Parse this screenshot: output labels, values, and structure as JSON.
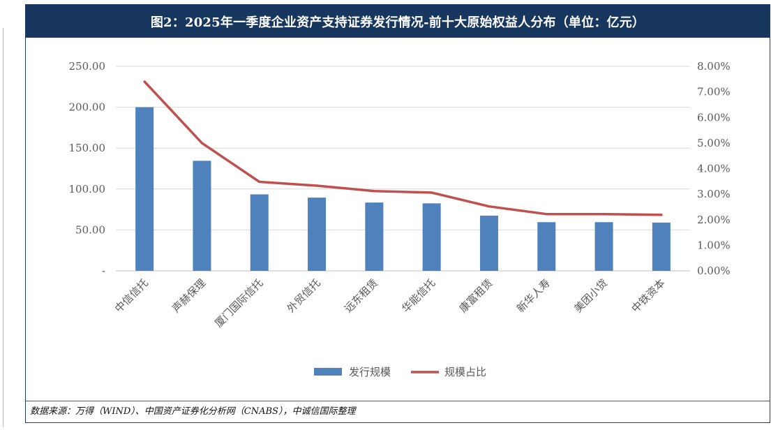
{
  "header": {
    "title": "图2：2025年一季度企业资产支持证券发行情况-前十大原始权益人分布（单位：亿元）"
  },
  "footer": {
    "source": "数据来源：万得（WIND）、中国资产证券化分析网（CNABS），中诚信国际整理"
  },
  "chart_data": {
    "type": "bar",
    "title": "",
    "xlabel": "",
    "ylabel": "",
    "categories": [
      "中信信托",
      "声赫保理",
      "厦门国际信托",
      "外贸信托",
      "远东租赁",
      "华能信托",
      "康富租赁",
      "新华人寿",
      "美团小贷",
      "中铁资本"
    ],
    "series": [
      {
        "name": "发行规模",
        "type": "bar",
        "axis": "left",
        "color": "#4f81bd",
        "values": [
          200,
          134.5,
          93.5,
          89.5,
          83.5,
          82.5,
          67.5,
          59.5,
          59.5,
          59
        ]
      },
      {
        "name": "规模占比",
        "type": "line",
        "axis": "right",
        "color": "#c0504d",
        "values": [
          0.074,
          0.05,
          0.0348,
          0.0333,
          0.0312,
          0.0306,
          0.0252,
          0.0222,
          0.0222,
          0.0219
        ]
      }
    ],
    "y_left": {
      "range": [
        0,
        250
      ],
      "ticks": [
        0,
        50,
        100,
        150,
        200,
        250
      ],
      "tick_labels": [
        "-",
        "50.00",
        "100.00",
        "150.00",
        "200.00",
        "250.00"
      ]
    },
    "y_right": {
      "range": [
        0,
        0.08
      ],
      "ticks": [
        0,
        0.01,
        0.02,
        0.03,
        0.04,
        0.05,
        0.06,
        0.07,
        0.08
      ],
      "tick_labels": [
        "0.00%",
        "1.00%",
        "2.00%",
        "3.00%",
        "4.00%",
        "5.00%",
        "6.00%",
        "7.00%",
        "8.00%"
      ]
    },
    "grid": true,
    "legend": "bottom"
  }
}
